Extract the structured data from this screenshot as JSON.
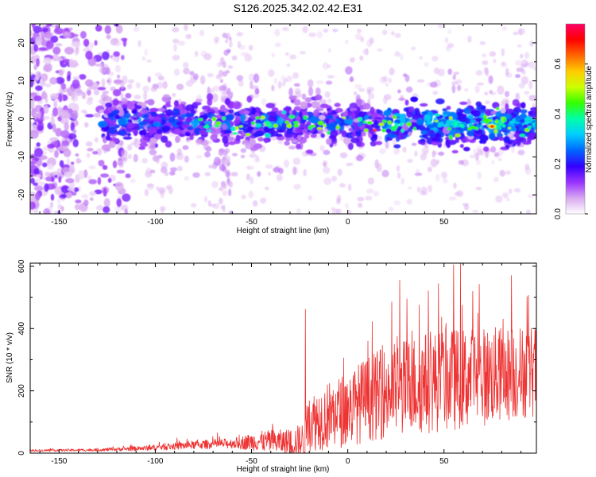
{
  "title": "S126.2025.342.02.42.E31",
  "chart_data": [
    {
      "type": "heatmap",
      "xlabel": "Height of straight line (km)",
      "ylabel": "Frequency (Hz)",
      "xlim": [
        -165,
        98
      ],
      "ylim": [
        -25,
        25
      ],
      "xticks": [
        -150,
        -100,
        -50,
        0,
        50
      ],
      "yticks": [
        -20,
        -10,
        0,
        10,
        20
      ],
      "colorbar": {
        "label": "Normalized spectral amplitude",
        "range": [
          0.0,
          0.76
        ],
        "ticks": [
          0.0,
          0.2,
          0.4,
          0.6
        ],
        "stops": [
          "#ffffff",
          "#d8a8f0",
          "#9933ff",
          "#3300ff",
          "#0066ff",
          "#00ccff",
          "#00ffaa",
          "#33ff00",
          "#ccff00",
          "#ffcc00",
          "#ff6600",
          "#ff0000",
          "#ff0066"
        ]
      },
      "regions": [
        {
          "name": "noise-left",
          "x": [
            -165,
            -128
          ],
          "f": [
            -25,
            25
          ],
          "amp": 0.12
        },
        {
          "name": "signal-band",
          "x": [
            -128,
            98
          ],
          "f": [
            -6,
            4
          ],
          "amp": 0.35,
          "peak": {
            "x": 75,
            "f": -2,
            "amp": 0.7
          }
        },
        {
          "name": "streak",
          "x": [
            -66,
            -60
          ],
          "f": [
            -25,
            22
          ],
          "amp": 0.05
        }
      ]
    },
    {
      "type": "line",
      "xlabel": "Height of straight line (km)",
      "ylabel": "SNR (10 * v/v)",
      "xlim": [
        -165,
        98
      ],
      "ylim": [
        0,
        610
      ],
      "xticks": [
        -150,
        -100,
        -50,
        0,
        50
      ],
      "yticks": [
        0,
        200,
        400,
        600
      ],
      "color": "#ee3333",
      "envelope": {
        "x": [
          -165,
          -130,
          -105,
          -80,
          -60,
          -45,
          -30,
          -22,
          -20,
          -10,
          0,
          10,
          25,
          40,
          55,
          70,
          85,
          98
        ],
        "base": [
          8,
          10,
          15,
          25,
          30,
          35,
          30,
          30,
          90,
          110,
          130,
          160,
          190,
          210,
          220,
          230,
          240,
          250
        ],
        "noise": [
          6,
          8,
          15,
          25,
          30,
          60,
          80,
          120,
          170,
          200,
          220,
          250,
          280,
          300,
          300,
          290,
          280,
          270
        ]
      },
      "peaks": [
        {
          "x": -22,
          "y": 462
        },
        {
          "x": 27,
          "y": 555
        },
        {
          "x": 55,
          "y": 605
        },
        {
          "x": 65,
          "y": 520
        },
        {
          "x": 85,
          "y": 570
        }
      ]
    }
  ]
}
